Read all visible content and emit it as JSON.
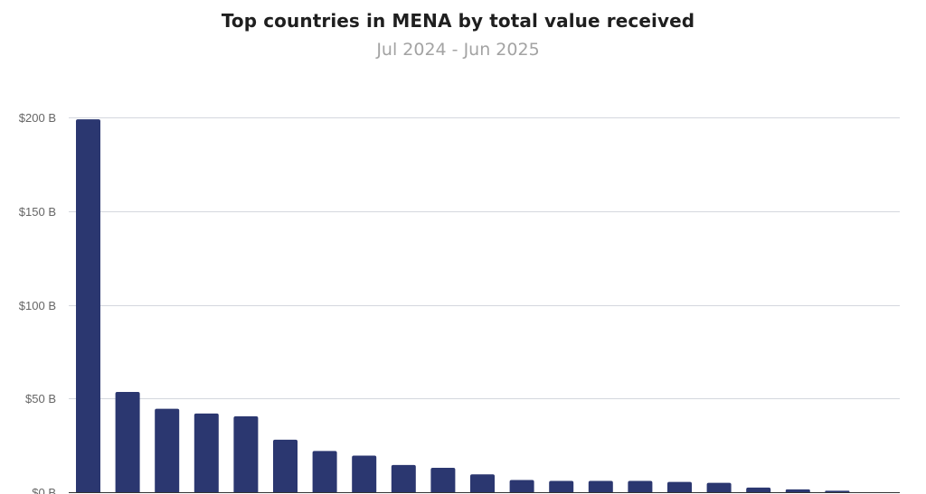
{
  "chart_data": {
    "type": "bar",
    "title": "Top countries in MENA by total value received",
    "subtitle": "Jul 2024 - Jun 2025",
    "xlabel": "",
    "ylabel": "",
    "ylim": [
      0,
      200
    ],
    "yticks": [
      0,
      50,
      100,
      150,
      200
    ],
    "ytick_labels": [
      "$0 B",
      "$50 B",
      "$100 B",
      "$150 B",
      "$200 B"
    ],
    "grid": true,
    "bar_color": "#2b3770",
    "series": [
      {
        "values": [
          199,
          53.5,
          44.5,
          42,
          40.5,
          28,
          22,
          19.5,
          14.5,
          13,
          9.5,
          6.5,
          6,
          6,
          6,
          5.5,
          5,
          2.5,
          1.5,
          0.8
        ]
      }
    ]
  }
}
